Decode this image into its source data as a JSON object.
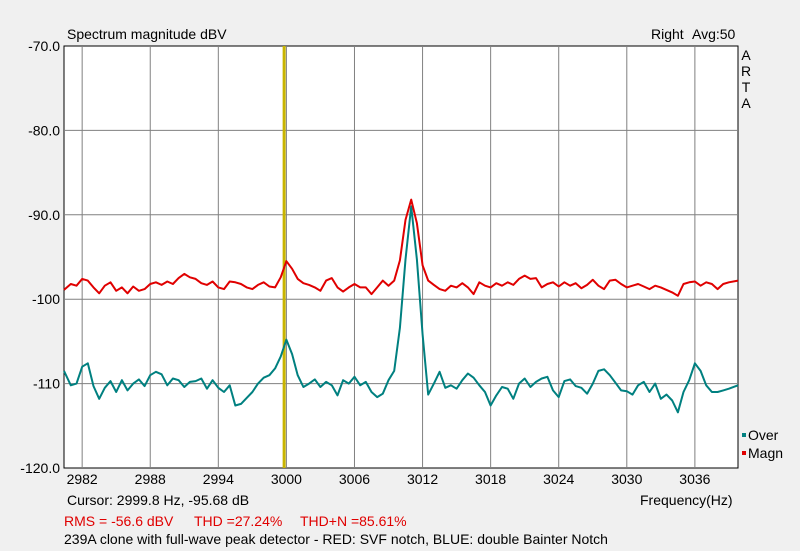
{
  "header": {
    "title": "Spectrum magnitude dBV",
    "channel": "Right",
    "averaging": "Avg:50"
  },
  "brand_letters": [
    "A",
    "R",
    "T",
    "A"
  ],
  "footer": {
    "cursor": "Cursor:  2999.8 Hz, -95.68 dB",
    "frequency_label": "Frequency(Hz)",
    "rms": "RMS =  -56.6 dBV",
    "thd": "THD =27.24%",
    "thdn": "THD+N =85.61%",
    "description": "239A clone with full-wave peak detector - RED: SVF notch, BLUE: double Bainter Notch"
  },
  "colors": {
    "background": "#f0f0f0",
    "plot_bg": "#ffffff",
    "grid": "#808080",
    "over": "#008080",
    "magn": "#e00000",
    "cursor": "#c8b400"
  },
  "chart_data": {
    "type": "line",
    "title": "Spectrum magnitude dBV",
    "xlabel": "Frequency(Hz)",
    "ylabel": "",
    "xlim": [
      2980.4,
      3039.8
    ],
    "ylim": [
      -120,
      -70
    ],
    "x_ticks": [
      2982,
      2988,
      2994,
      3000,
      3006,
      3012,
      3018,
      3024,
      3030,
      3036
    ],
    "y_ticks": [
      -70,
      -80,
      -90,
      -100,
      -110,
      -120
    ],
    "y_tick_labels": [
      "-70.0",
      "-80.0",
      "-90.0",
      "-100",
      "-110",
      "-120.0"
    ],
    "grid": true,
    "legend_position": "bottom-right",
    "cursor_x": 2999.8,
    "series": [
      {
        "name": "Over",
        "color": "#008080",
        "x": [
          2980.4,
          2981.0,
          2981.5,
          2982.0,
          2982.5,
          2983.0,
          2983.5,
          2984.0,
          2984.5,
          2985.0,
          2985.5,
          2986.0,
          2986.5,
          2987.0,
          2987.5,
          2988.0,
          2988.5,
          2989.0,
          2989.5,
          2990.0,
          2990.5,
          2991.0,
          2991.5,
          2992.0,
          2992.5,
          2993.0,
          2993.5,
          2994.0,
          2994.5,
          2995.0,
          2995.5,
          2996.0,
          2996.5,
          2997.0,
          2997.5,
          2998.0,
          2998.5,
          2999.0,
          2999.5,
          3000.0,
          3000.5,
          3001.0,
          3001.5,
          3002.0,
          3002.5,
          3003.0,
          3003.5,
          3004.0,
          3004.5,
          3005.0,
          3005.5,
          3006.0,
          3006.5,
          3007.0,
          3007.5,
          3008.0,
          3008.5,
          3009.0,
          3009.5,
          3010.0,
          3010.5,
          3011.0,
          3011.5,
          3012.0,
          3012.5,
          3013.0,
          3013.5,
          3014.0,
          3014.5,
          3015.0,
          3015.5,
          3016.0,
          3016.5,
          3017.0,
          3017.5,
          3018.0,
          3018.5,
          3019.0,
          3019.5,
          3020.0,
          3020.5,
          3021.0,
          3021.5,
          3022.0,
          3022.5,
          3023.0,
          3023.5,
          3024.0,
          3024.5,
          3025.0,
          3025.5,
          3026.0,
          3026.5,
          3027.0,
          3027.5,
          3028.0,
          3028.5,
          3029.0,
          3029.5,
          3030.0,
          3030.5,
          3031.0,
          3031.5,
          3032.0,
          3032.5,
          3033.0,
          3033.5,
          3034.0,
          3034.5,
          3035.0,
          3035.5,
          3036.0,
          3036.5,
          3037.0,
          3037.5,
          3038.0,
          3038.5,
          3039.0,
          3039.8
        ],
        "y": [
          -108.5,
          -110.2,
          -110.0,
          -108.0,
          -107.6,
          -110.3,
          -111.8,
          -110.5,
          -109.7,
          -111.0,
          -109.6,
          -110.8,
          -110.0,
          -109.5,
          -110.3,
          -109.0,
          -108.6,
          -108.9,
          -110.2,
          -109.4,
          -109.6,
          -110.4,
          -109.8,
          -109.7,
          -109.4,
          -110.6,
          -109.6,
          -110.5,
          -111.0,
          -110.2,
          -112.6,
          -112.4,
          -111.7,
          -111.0,
          -110.0,
          -109.3,
          -109.0,
          -108.2,
          -106.8,
          -104.8,
          -106.5,
          -109.0,
          -110.4,
          -110.0,
          -109.5,
          -110.4,
          -109.8,
          -110.2,
          -111.4,
          -109.6,
          -110.0,
          -109.2,
          -110.2,
          -109.8,
          -111.0,
          -111.6,
          -111.2,
          -109.6,
          -108.5,
          -103.4,
          -95.3,
          -89.0,
          -95.3,
          -104.2,
          -111.3,
          -110.0,
          -108.6,
          -110.5,
          -110.2,
          -110.6,
          -109.6,
          -108.8,
          -109.3,
          -110.2,
          -111.0,
          -112.6,
          -111.4,
          -110.4,
          -110.6,
          -111.8,
          -110.0,
          -109.4,
          -110.4,
          -109.8,
          -109.4,
          -109.2,
          -110.8,
          -111.6,
          -109.7,
          -109.5,
          -110.3,
          -110.5,
          -111.2,
          -110.0,
          -108.5,
          -108.3,
          -109.0,
          -109.9,
          -110.8,
          -110.9,
          -111.3,
          -110.2,
          -109.8,
          -111.0,
          -110.0,
          -111.8,
          -111.3,
          -112.0,
          -113.4,
          -111.0,
          -109.6,
          -107.6,
          -108.5,
          -110.2,
          -111.0,
          -111.0,
          -110.8,
          -110.6,
          -110.2
        ]
      },
      {
        "name": "Magn",
        "color": "#e00000",
        "x": [
          2980.4,
          2981.0,
          2981.5,
          2982.0,
          2982.5,
          2983.0,
          2983.5,
          2984.0,
          2984.5,
          2985.0,
          2985.5,
          2986.0,
          2986.5,
          2987.0,
          2987.5,
          2988.0,
          2988.5,
          2989.0,
          2989.5,
          2990.0,
          2990.5,
          2991.0,
          2991.5,
          2992.0,
          2992.5,
          2993.0,
          2993.5,
          2994.0,
          2994.5,
          2995.0,
          2995.5,
          2996.0,
          2996.5,
          2997.0,
          2997.5,
          2998.0,
          2998.5,
          2999.0,
          2999.5,
          3000.0,
          3000.5,
          3001.0,
          3001.5,
          3002.0,
          3002.5,
          3003.0,
          3003.5,
          3004.0,
          3004.5,
          3005.0,
          3005.5,
          3006.0,
          3006.5,
          3007.0,
          3007.5,
          3008.0,
          3008.5,
          3009.0,
          3009.5,
          3010.0,
          3010.5,
          3011.0,
          3011.5,
          3012.0,
          3012.5,
          3013.0,
          3013.5,
          3014.0,
          3014.5,
          3015.0,
          3015.5,
          3016.0,
          3016.5,
          3017.0,
          3017.5,
          3018.0,
          3018.5,
          3019.0,
          3019.5,
          3020.0,
          3020.5,
          3021.0,
          3021.5,
          3022.0,
          3022.5,
          3023.0,
          3023.5,
          3024.0,
          3024.5,
          3025.0,
          3025.5,
          3026.0,
          3026.5,
          3027.0,
          3027.5,
          3028.0,
          3028.5,
          3029.0,
          3029.5,
          3030.0,
          3030.5,
          3031.0,
          3031.5,
          3032.0,
          3032.5,
          3033.0,
          3033.5,
          3034.0,
          3034.5,
          3035.0,
          3035.5,
          3036.0,
          3036.5,
          3037.0,
          3037.5,
          3038.0,
          3038.5,
          3039.0,
          3039.8
        ],
        "y": [
          -98.9,
          -98.2,
          -98.4,
          -97.6,
          -97.8,
          -98.6,
          -99.3,
          -98.4,
          -98.0,
          -99.0,
          -98.6,
          -99.3,
          -98.5,
          -99.0,
          -98.8,
          -98.2,
          -98.0,
          -98.3,
          -97.9,
          -98.2,
          -97.5,
          -97.0,
          -97.4,
          -97.6,
          -98.1,
          -98.3,
          -97.9,
          -98.6,
          -98.8,
          -97.9,
          -98.0,
          -98.2,
          -98.6,
          -98.8,
          -98.3,
          -98.0,
          -98.5,
          -98.6,
          -97.4,
          -95.5,
          -96.4,
          -97.6,
          -98.1,
          -98.3,
          -98.6,
          -99.0,
          -97.8,
          -97.5,
          -98.6,
          -99.1,
          -98.6,
          -98.2,
          -98.6,
          -98.6,
          -99.4,
          -98.6,
          -97.8,
          -98.4,
          -97.8,
          -95.4,
          -90.6,
          -88.2,
          -91.0,
          -96.0,
          -97.8,
          -98.3,
          -98.8,
          -99.0,
          -98.4,
          -98.6,
          -98.1,
          -98.6,
          -99.4,
          -98.0,
          -98.4,
          -98.6,
          -98.1,
          -98.4,
          -98.0,
          -98.3,
          -97.6,
          -97.2,
          -97.6,
          -97.5,
          -98.6,
          -98.2,
          -98.0,
          -98.5,
          -98.0,
          -98.4,
          -98.1,
          -98.7,
          -98.3,
          -97.7,
          -98.4,
          -98.8,
          -97.8,
          -97.7,
          -98.2,
          -98.6,
          -98.4,
          -98.2,
          -98.5,
          -98.8,
          -98.4,
          -98.6,
          -98.9,
          -99.2,
          -99.6,
          -98.2,
          -98.0,
          -97.9,
          -98.4,
          -98.0,
          -98.2,
          -98.8,
          -98.2,
          -98.0,
          -97.8
        ]
      }
    ]
  }
}
